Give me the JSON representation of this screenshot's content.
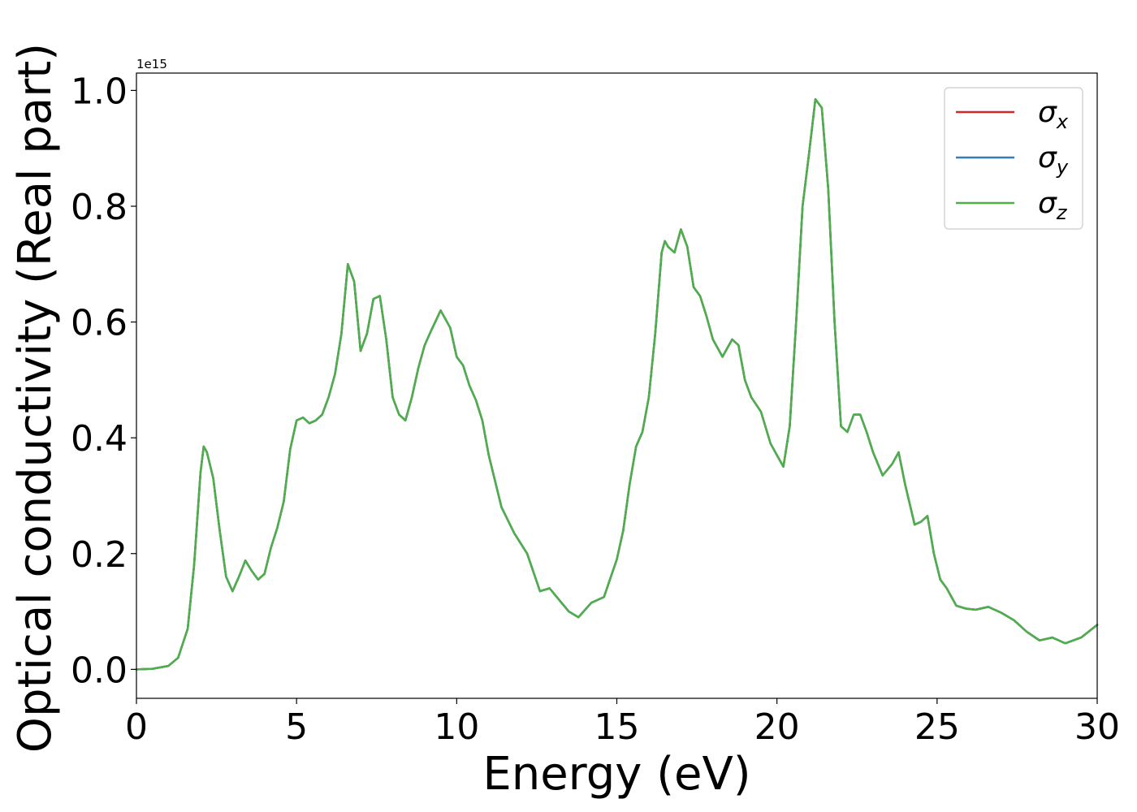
{
  "chart_data": {
    "type": "line",
    "xlabel": "Energy (eV)",
    "ylabel": "Optical conductivity (Real part)",
    "y_offset_text": "1e15",
    "y_multiplier": 1000000000000000.0,
    "xlim": [
      0,
      30
    ],
    "ylim": [
      -0.05,
      1.03
    ],
    "x_ticks": [
      0,
      5,
      10,
      15,
      20,
      25,
      30
    ],
    "y_ticks": [
      0.0,
      0.2,
      0.4,
      0.6,
      0.8,
      1.0
    ],
    "x_tick_labels": [
      "0",
      "5",
      "10",
      "15",
      "20",
      "25",
      "30"
    ],
    "y_tick_labels": [
      "0.0",
      "0.2",
      "0.4",
      "0.6",
      "0.8",
      "1.0"
    ],
    "grid": false,
    "legend_position": "top-right",
    "x": [
      0,
      0.5,
      1.0,
      1.3,
      1.6,
      1.8,
      2.0,
      2.1,
      2.2,
      2.4,
      2.6,
      2.8,
      3.0,
      3.2,
      3.4,
      3.6,
      3.8,
      4.0,
      4.2,
      4.4,
      4.6,
      4.8,
      5.0,
      5.2,
      5.4,
      5.6,
      5.8,
      6.0,
      6.2,
      6.4,
      6.6,
      6.8,
      7.0,
      7.2,
      7.4,
      7.6,
      7.8,
      8.0,
      8.2,
      8.4,
      8.6,
      8.8,
      9.0,
      9.2,
      9.5,
      9.8,
      10.0,
      10.2,
      10.4,
      10.6,
      10.8,
      11.0,
      11.4,
      11.8,
      12.2,
      12.6,
      12.9,
      13.2,
      13.5,
      13.8,
      14.2,
      14.6,
      15.0,
      15.2,
      15.4,
      15.6,
      15.8,
      16.0,
      16.2,
      16.4,
      16.5,
      16.6,
      16.8,
      17.0,
      17.2,
      17.4,
      17.6,
      17.8,
      18.0,
      18.3,
      18.6,
      18.8,
      19.0,
      19.2,
      19.5,
      19.8,
      20.0,
      20.2,
      20.4,
      20.6,
      20.8,
      21.0,
      21.2,
      21.4,
      21.6,
      21.8,
      22.0,
      22.2,
      22.4,
      22.6,
      22.8,
      23.0,
      23.3,
      23.6,
      23.8,
      24.0,
      24.3,
      24.5,
      24.7,
      24.9,
      25.1,
      25.3,
      25.6,
      25.9,
      26.2,
      26.6,
      27.0,
      27.4,
      27.8,
      28.2,
      28.6,
      29.0,
      29.5,
      30.0
    ],
    "series": [
      {
        "name": "σx",
        "name_base": "σ",
        "name_sub": "x",
        "color": "#d62728",
        "values": [
          0.0,
          0.001,
          0.006,
          0.02,
          0.07,
          0.18,
          0.34,
          0.385,
          0.375,
          0.33,
          0.24,
          0.16,
          0.135,
          0.16,
          0.188,
          0.17,
          0.155,
          0.165,
          0.21,
          0.245,
          0.29,
          0.38,
          0.43,
          0.435,
          0.425,
          0.43,
          0.44,
          0.47,
          0.51,
          0.58,
          0.7,
          0.67,
          0.55,
          0.58,
          0.64,
          0.645,
          0.57,
          0.47,
          0.44,
          0.43,
          0.47,
          0.52,
          0.56,
          0.585,
          0.62,
          0.59,
          0.54,
          0.525,
          0.49,
          0.465,
          0.43,
          0.37,
          0.28,
          0.235,
          0.2,
          0.135,
          0.14,
          0.12,
          0.1,
          0.09,
          0.115,
          0.125,
          0.19,
          0.24,
          0.32,
          0.385,
          0.41,
          0.47,
          0.58,
          0.72,
          0.74,
          0.73,
          0.72,
          0.76,
          0.73,
          0.66,
          0.645,
          0.61,
          0.57,
          0.54,
          0.57,
          0.56,
          0.5,
          0.47,
          0.445,
          0.39,
          0.37,
          0.35,
          0.42,
          0.6,
          0.8,
          0.89,
          0.985,
          0.97,
          0.83,
          0.6,
          0.42,
          0.41,
          0.44,
          0.44,
          0.41,
          0.375,
          0.335,
          0.355,
          0.375,
          0.32,
          0.25,
          0.255,
          0.265,
          0.2,
          0.155,
          0.14,
          0.11,
          0.105,
          0.103,
          0.108,
          0.098,
          0.085,
          0.065,
          0.05,
          0.055,
          0.045,
          0.055,
          0.077
        ]
      },
      {
        "name": "σy",
        "name_base": "σ",
        "name_sub": "y",
        "color": "#377eb8",
        "values": [
          0.0,
          0.001,
          0.006,
          0.02,
          0.07,
          0.18,
          0.34,
          0.385,
          0.375,
          0.33,
          0.24,
          0.16,
          0.135,
          0.16,
          0.188,
          0.17,
          0.155,
          0.165,
          0.21,
          0.245,
          0.29,
          0.38,
          0.43,
          0.435,
          0.425,
          0.43,
          0.44,
          0.47,
          0.51,
          0.58,
          0.7,
          0.67,
          0.55,
          0.58,
          0.64,
          0.645,
          0.57,
          0.47,
          0.44,
          0.43,
          0.47,
          0.52,
          0.56,
          0.585,
          0.62,
          0.59,
          0.54,
          0.525,
          0.49,
          0.465,
          0.43,
          0.37,
          0.28,
          0.235,
          0.2,
          0.135,
          0.14,
          0.12,
          0.1,
          0.09,
          0.115,
          0.125,
          0.19,
          0.24,
          0.32,
          0.385,
          0.41,
          0.47,
          0.58,
          0.72,
          0.74,
          0.73,
          0.72,
          0.76,
          0.73,
          0.66,
          0.645,
          0.61,
          0.57,
          0.54,
          0.57,
          0.56,
          0.5,
          0.47,
          0.445,
          0.39,
          0.37,
          0.35,
          0.42,
          0.6,
          0.8,
          0.89,
          0.985,
          0.97,
          0.83,
          0.6,
          0.42,
          0.41,
          0.44,
          0.44,
          0.41,
          0.375,
          0.335,
          0.355,
          0.375,
          0.32,
          0.25,
          0.255,
          0.265,
          0.2,
          0.155,
          0.14,
          0.11,
          0.105,
          0.103,
          0.108,
          0.098,
          0.085,
          0.065,
          0.05,
          0.055,
          0.045,
          0.055,
          0.077
        ]
      },
      {
        "name": "σz",
        "name_base": "σ",
        "name_sub": "z",
        "color": "#4daf4a",
        "values": [
          0.0,
          0.001,
          0.006,
          0.02,
          0.07,
          0.18,
          0.34,
          0.385,
          0.375,
          0.33,
          0.24,
          0.16,
          0.135,
          0.16,
          0.188,
          0.17,
          0.155,
          0.165,
          0.21,
          0.245,
          0.29,
          0.38,
          0.43,
          0.435,
          0.425,
          0.43,
          0.44,
          0.47,
          0.51,
          0.58,
          0.7,
          0.67,
          0.55,
          0.58,
          0.64,
          0.645,
          0.57,
          0.47,
          0.44,
          0.43,
          0.47,
          0.52,
          0.56,
          0.585,
          0.62,
          0.59,
          0.54,
          0.525,
          0.49,
          0.465,
          0.43,
          0.37,
          0.28,
          0.235,
          0.2,
          0.135,
          0.14,
          0.12,
          0.1,
          0.09,
          0.115,
          0.125,
          0.19,
          0.24,
          0.32,
          0.385,
          0.41,
          0.47,
          0.58,
          0.72,
          0.74,
          0.73,
          0.72,
          0.76,
          0.73,
          0.66,
          0.645,
          0.61,
          0.57,
          0.54,
          0.57,
          0.56,
          0.5,
          0.47,
          0.445,
          0.39,
          0.37,
          0.35,
          0.42,
          0.6,
          0.8,
          0.89,
          0.985,
          0.97,
          0.83,
          0.6,
          0.42,
          0.41,
          0.44,
          0.44,
          0.41,
          0.375,
          0.335,
          0.355,
          0.375,
          0.32,
          0.25,
          0.255,
          0.265,
          0.2,
          0.155,
          0.14,
          0.11,
          0.105,
          0.103,
          0.108,
          0.098,
          0.085,
          0.065,
          0.05,
          0.055,
          0.045,
          0.055,
          0.077
        ]
      }
    ]
  }
}
